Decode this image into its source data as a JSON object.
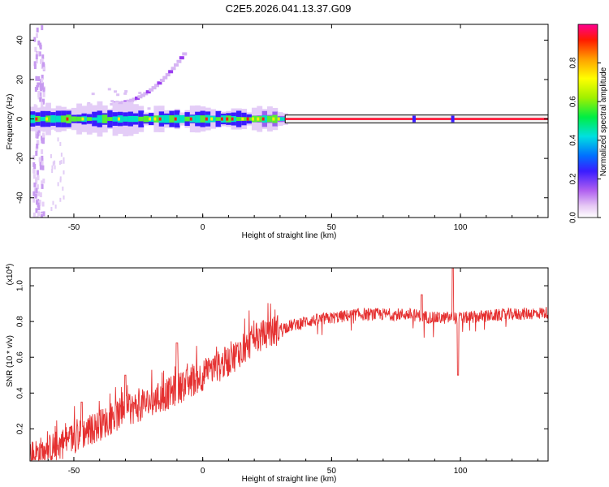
{
  "figure_title": "C2E5.2026.041.13.37.G09",
  "chart_data": [
    {
      "type": "heatmap",
      "title": "C2E5.2026.041.13.37.G09",
      "xlabel": "Height of straight line (km)",
      "ylabel": "Frequency (Hz)",
      "xlim": [
        -67,
        134
      ],
      "ylim": [
        -50,
        48
      ],
      "xticks": [
        -50,
        0,
        50,
        100
      ],
      "yticks": [
        -40,
        -20,
        0,
        20,
        40
      ],
      "xtick_labels": [
        "-50",
        "0",
        "50",
        "100"
      ],
      "ytick_labels": [
        "-40",
        "-20",
        "0",
        "20",
        "40"
      ],
      "colorbar": {
        "label": "Normalized spectral amplitude",
        "range": [
          0,
          1
        ],
        "ticks": [
          0.0,
          0.2,
          0.4,
          0.6,
          0.8
        ],
        "tick_labels": [
          "0.0",
          "0.2",
          "0.4",
          "0.6",
          "0.8"
        ]
      },
      "features": {
        "carrier_frequency_hz": 0,
        "carrier_band_half_width_hz": 2,
        "broadening_region_km": [
          -67,
          32
        ],
        "stable_region_km": [
          32,
          134
        ],
        "spur_heights_km": [
          82,
          97
        ],
        "scatter_streak": {
          "x_km": [
            -35,
            -8
          ],
          "frequency_hz": [
            8,
            33
          ]
        }
      }
    },
    {
      "type": "line",
      "xlabel": "Height of straight line (km)",
      "ylabel": "SNR (10 * v/v)",
      "y_scale_label": "(x10",
      "y_scale_exponent": "4",
      "xlim": [
        -67,
        134
      ],
      "ylim": [
        0.02,
        1.1
      ],
      "xticks": [
        -50,
        0,
        50,
        100
      ],
      "yticks": [
        0.2,
        0.4,
        0.6,
        0.8,
        1.0
      ],
      "xtick_labels": [
        "-50",
        "0",
        "50",
        "100"
      ],
      "ytick_labels": [
        "0.2",
        "0.4",
        "0.6",
        "0.8",
        "1.0"
      ],
      "series": [
        {
          "name": "SNR",
          "color": "#e53030",
          "x": [
            -67,
            -60,
            -50,
            -40,
            -30,
            -20,
            -10,
            0,
            10,
            20,
            30,
            40,
            50,
            60,
            70,
            80,
            90,
            100,
            110,
            120,
            134
          ],
          "y": [
            0.05,
            0.08,
            0.15,
            0.22,
            0.3,
            0.35,
            0.42,
            0.5,
            0.58,
            0.7,
            0.76,
            0.8,
            0.82,
            0.84,
            0.84,
            0.84,
            0.82,
            0.82,
            0.83,
            0.84,
            0.85
          ]
        }
      ],
      "spikes": [
        {
          "x": -47,
          "y": 0.35
        },
        {
          "x": -30,
          "y": 0.5
        },
        {
          "x": -10,
          "y": 0.68
        },
        {
          "x": 85,
          "y": 0.95
        },
        {
          "x": 97,
          "y": 1.1
        },
        {
          "x": 99,
          "y": 0.5
        }
      ]
    }
  ]
}
